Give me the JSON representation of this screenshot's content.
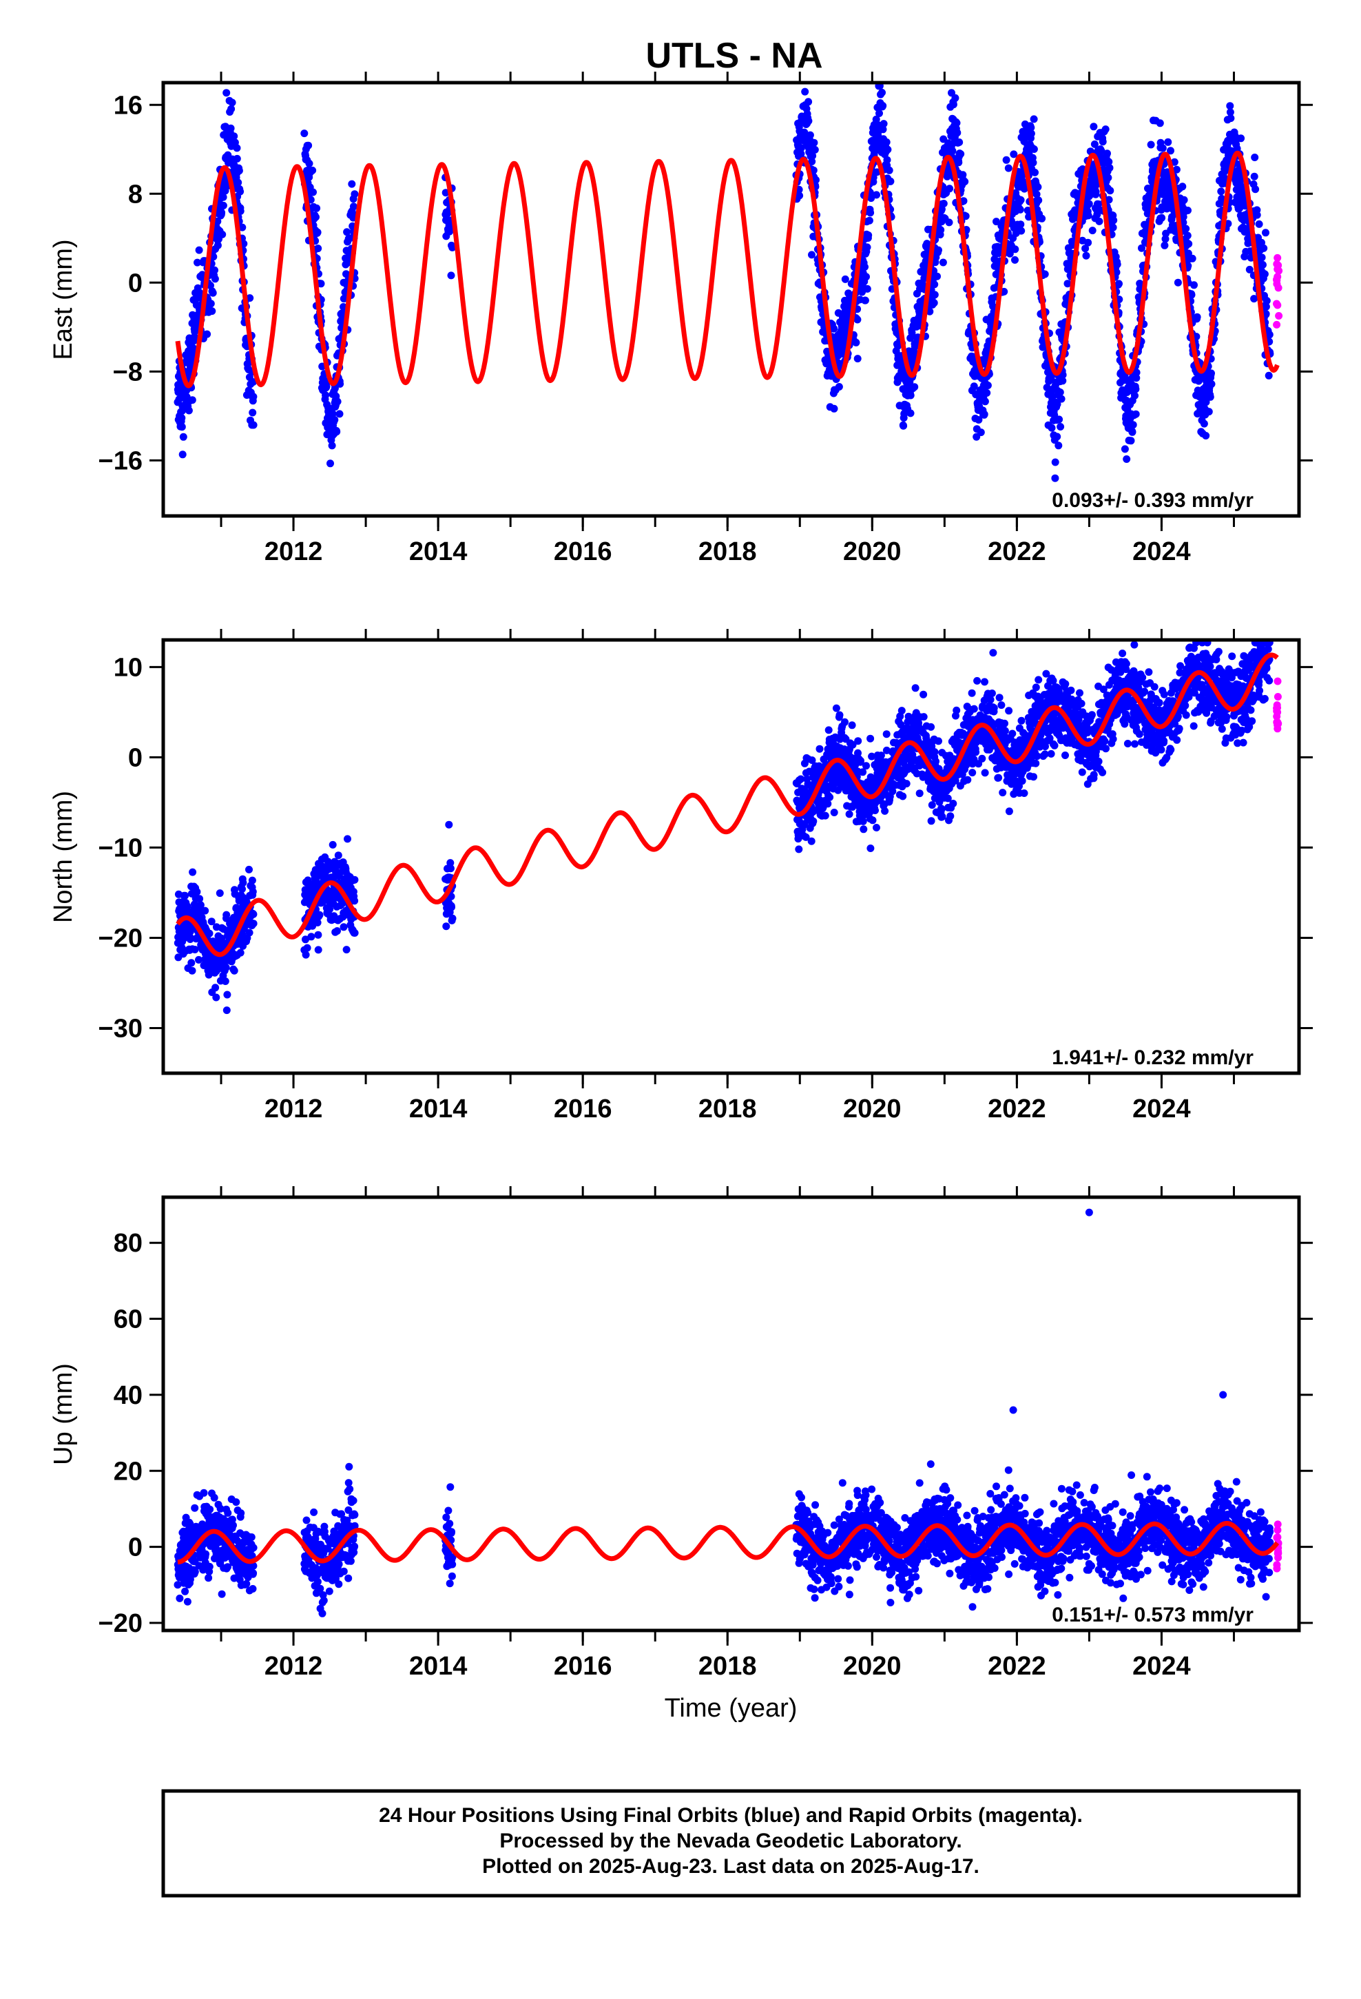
{
  "chart_data": [
    {
      "type": "scatter",
      "title": "UTLS - NA",
      "xlabel": "",
      "ylabel": "East (mm)",
      "xlim": [
        2010.2,
        2025.9
      ],
      "ylim": [
        -21,
        18
      ],
      "yticks": [
        -16,
        -8,
        0,
        8,
        16
      ],
      "yticklabels": [
        "−16",
        "−8",
        "0",
        "8",
        "16"
      ],
      "xticks": [
        2012,
        2014,
        2016,
        2018,
        2020,
        2022,
        2024
      ],
      "xticklabels": [
        "2012",
        "2014",
        "2016",
        "2018",
        "2020",
        "2022",
        "2024"
      ],
      "rate_label": "0.093+/- 0.393 mm/yr",
      "legend": "none",
      "colors": {
        "final": "#0000ff",
        "rapid": "#ff00ff",
        "model": "#ff0000"
      },
      "model": {
        "mean": 0.5,
        "trend": 0.093,
        "amplitude": 9.8,
        "phase_peak": 0.05,
        "start": 2010.4,
        "end": 2025.6
      },
      "data_segments": [
        [
          2010.4,
          2011.45
        ],
        [
          2012.15,
          2012.85
        ],
        [
          2014.1,
          2014.2
        ],
        [
          2018.95,
          2025.5
        ]
      ],
      "series": [
        {
          "name": "Final Orbits",
          "note": "blue daily positions"
        },
        {
          "name": "Rapid Orbits",
          "note": "magenta daily positions",
          "x_range": [
            2025.5,
            2025.62
          ],
          "y_range": [
            -4,
            3
          ]
        },
        {
          "name": "Model",
          "note": "red fitted curve"
        }
      ]
    },
    {
      "type": "scatter",
      "title": "",
      "xlabel": "",
      "ylabel": "North (mm)",
      "xlim": [
        2010.2,
        2025.9
      ],
      "ylim": [
        -35,
        13
      ],
      "yticks": [
        -30,
        -20,
        -10,
        0,
        10
      ],
      "yticklabels": [
        "−30",
        "−20",
        "−10",
        "0",
        "10"
      ],
      "xticks": [
        2012,
        2014,
        2016,
        2018,
        2020,
        2022,
        2024
      ],
      "xticklabels": [
        "2012",
        "2014",
        "2016",
        "2018",
        "2020",
        "2022",
        "2024"
      ],
      "rate_label": "1.941+/- 0.232 mm/yr",
      "legend": "none",
      "colors": {
        "final": "#0000ff",
        "rapid": "#ff00ff",
        "model": "#ff0000"
      },
      "model": {
        "mean": -20.5,
        "trend": 1.941,
        "amplitude": 2.5,
        "phase_peak": 0.5,
        "start": 2010.4,
        "end": 2025.6
      },
      "data_segments": [
        [
          2010.4,
          2011.45
        ],
        [
          2012.15,
          2012.85
        ],
        [
          2014.1,
          2014.2
        ],
        [
          2018.95,
          2025.5
        ]
      ],
      "series": [
        {
          "name": "Final Orbits",
          "note": "blue daily positions"
        },
        {
          "name": "Rapid Orbits",
          "note": "magenta daily positions",
          "x_range": [
            2025.5,
            2025.62
          ],
          "y_range": [
            3,
            9
          ]
        },
        {
          "name": "Model",
          "note": "red fitted curve"
        }
      ]
    },
    {
      "type": "scatter",
      "title": "",
      "xlabel": "Time (year)",
      "ylabel": "Up (mm)",
      "xlim": [
        2010.2,
        2025.9
      ],
      "ylim": [
        -22,
        92
      ],
      "yticks": [
        -20,
        0,
        20,
        40,
        60,
        80
      ],
      "yticklabels": [
        "−20",
        "0",
        "20",
        "40",
        "60",
        "80"
      ],
      "xticks": [
        2012,
        2014,
        2016,
        2018,
        2020,
        2022,
        2024
      ],
      "xticklabels": [
        "2012",
        "2014",
        "2016",
        "2018",
        "2020",
        "2022",
        "2024"
      ],
      "rate_label": "0.151+/- 0.573 mm/yr",
      "legend": "none",
      "colors": {
        "final": "#0000ff",
        "rapid": "#ff00ff",
        "model": "#ff0000"
      },
      "model": {
        "mean": 0,
        "trend": 0.151,
        "amplitude": 4,
        "phase_peak": 0.9,
        "start": 2010.4,
        "end": 2025.6
      },
      "data_segments": [
        [
          2010.4,
          2011.45
        ],
        [
          2012.15,
          2012.85
        ],
        [
          2014.1,
          2014.2
        ],
        [
          2018.95,
          2025.5
        ]
      ],
      "outliers": [
        [
          2023.0,
          88
        ],
        [
          2021.95,
          36
        ],
        [
          2024.85,
          40
        ]
      ],
      "series": [
        {
          "name": "Final Orbits",
          "note": "blue daily positions"
        },
        {
          "name": "Rapid Orbits",
          "note": "magenta daily positions",
          "x_range": [
            2025.5,
            2025.62
          ],
          "y_range": [
            -7,
            11
          ]
        },
        {
          "name": "Model",
          "note": "red fitted curve"
        }
      ]
    }
  ],
  "footer": {
    "line1": "24 Hour Positions Using Final Orbits (blue) and Rapid Orbits (magenta).",
    "line2": "Processed by the Nevada Geodetic Laboratory.",
    "line3": "Plotted on 2025-Aug-23. Last data on 2025-Aug-17."
  }
}
